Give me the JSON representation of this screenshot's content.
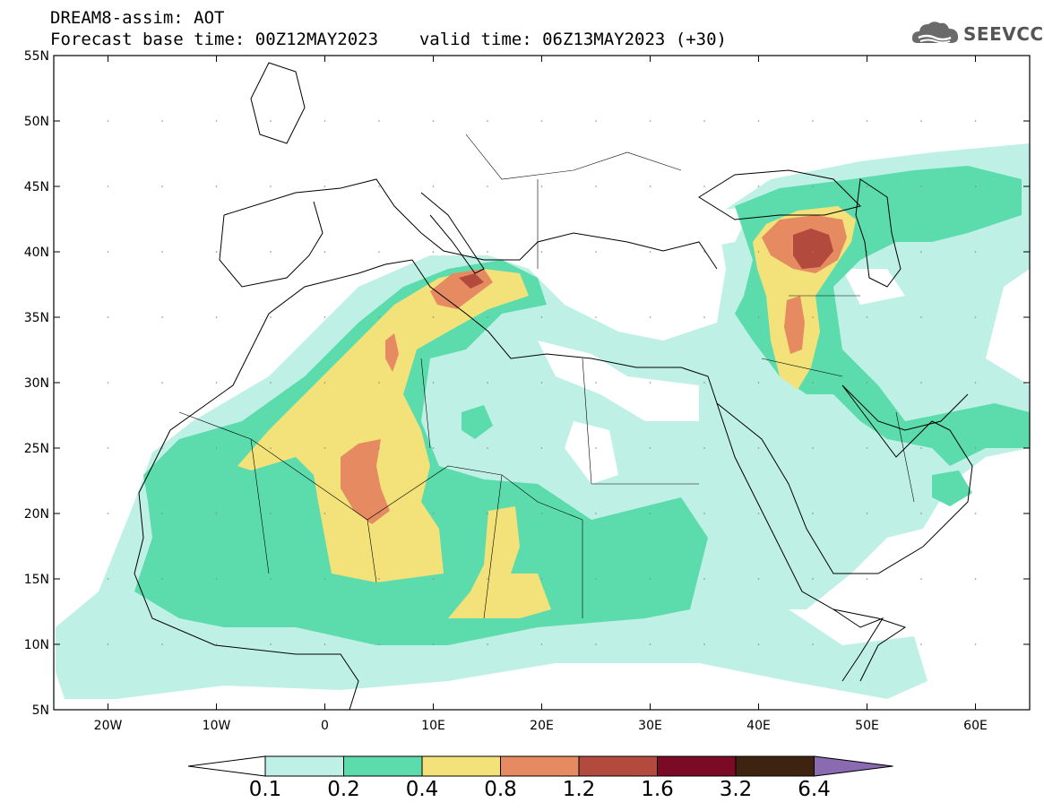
{
  "header": {
    "title_line1": "DREAM8-assim: AOT",
    "title_line2_base": "Forecast base time: 00Z12MAY2023",
    "title_line2_valid": "valid time: 06Z13MAY2023 (+30)"
  },
  "logo": {
    "text": "SEEVCCC",
    "icon": "cloud-icon"
  },
  "map": {
    "lon_range": [
      -25,
      65
    ],
    "lat_range": [
      5,
      55
    ],
    "lat_ticks": [
      "55N",
      "50N",
      "45N",
      "40N",
      "35N",
      "30N",
      "25N",
      "20N",
      "15N",
      "10N",
      "5N"
    ],
    "lon_ticks": [
      "20W",
      "10W",
      "0",
      "10E",
      "20E",
      "30E",
      "40E",
      "50E",
      "60E"
    ],
    "variable": "Aerosol Optical Thickness"
  },
  "colorbar": {
    "thresholds": [
      "0.1",
      "0.2",
      "0.4",
      "0.8",
      "1.2",
      "1.6",
      "3.2",
      "6.4"
    ],
    "colors": [
      "#bff0e6",
      "#5cdcad",
      "#f3e27a",
      "#e68a62",
      "#b24a3d",
      "#7a0a25",
      "#3e2410",
      "#8a6ab0"
    ]
  }
}
